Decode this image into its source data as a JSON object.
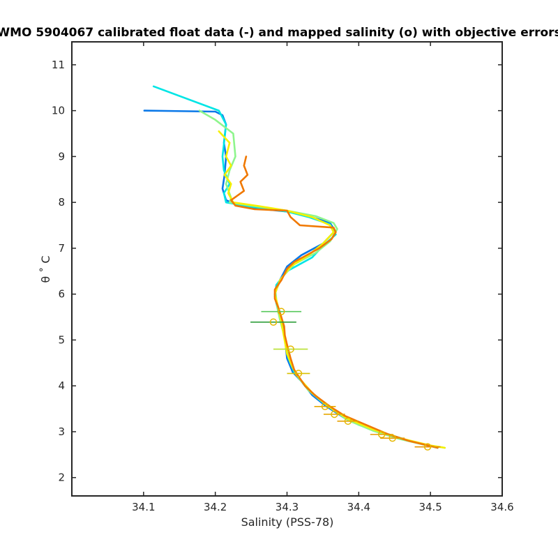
{
  "chart_data": {
    "type": "line",
    "title": "WMO 5904067 calibrated float data (-) and mapped salinity (o) with objective errors",
    "xlabel": "Salinity (PSS-78)",
    "ylabel": "θ ˚ C",
    "xlim": [
      34.0,
      34.6
    ],
    "ylim": [
      1.6,
      11.5
    ],
    "x_ticks": [
      "34.1",
      "34.2",
      "34.3",
      "34.4",
      "34.5",
      "34.6"
    ],
    "y_ticks": [
      "2",
      "3",
      "4",
      "5",
      "6",
      "7",
      "8",
      "9",
      "10",
      "11"
    ],
    "grid": false,
    "legend": "none",
    "series": [
      {
        "color": "#0a78e8",
        "points": [
          [
            34.101,
            10.0
          ],
          [
            34.2,
            9.98
          ],
          [
            34.21,
            9.9
          ],
          [
            34.215,
            9.7
          ],
          [
            34.212,
            9.3
          ],
          [
            34.215,
            9.0
          ],
          [
            34.213,
            8.6
          ],
          [
            34.21,
            8.3
          ],
          [
            34.215,
            8.05
          ],
          [
            34.23,
            7.95
          ],
          [
            34.25,
            7.88
          ],
          [
            34.3,
            7.8
          ],
          [
            34.33,
            7.7
          ],
          [
            34.36,
            7.55
          ],
          [
            34.367,
            7.38
          ],
          [
            34.35,
            7.1
          ],
          [
            34.32,
            6.85
          ],
          [
            34.3,
            6.6
          ],
          [
            34.29,
            6.3
          ],
          [
            34.283,
            6.0
          ],
          [
            34.287,
            5.7
          ],
          [
            34.291,
            5.5
          ],
          [
            34.295,
            5.2
          ],
          [
            34.298,
            4.9
          ],
          [
            34.3,
            4.6
          ],
          [
            34.308,
            4.3
          ],
          [
            34.32,
            4.1
          ],
          [
            34.335,
            3.8
          ],
          [
            34.355,
            3.55
          ],
          [
            34.38,
            3.3
          ],
          [
            34.41,
            3.1
          ],
          [
            34.44,
            2.95
          ],
          [
            34.47,
            2.8
          ],
          [
            34.51,
            2.65
          ]
        ]
      },
      {
        "color": "#00e5e5",
        "points": [
          [
            34.114,
            10.53
          ],
          [
            34.205,
            10.0
          ],
          [
            34.215,
            9.7
          ],
          [
            34.213,
            9.4
          ],
          [
            34.21,
            9.0
          ],
          [
            34.212,
            8.7
          ],
          [
            34.22,
            8.4
          ],
          [
            34.212,
            8.2
          ],
          [
            34.215,
            8.0
          ],
          [
            34.245,
            7.92
          ],
          [
            34.3,
            7.8
          ],
          [
            34.33,
            7.68
          ],
          [
            34.36,
            7.52
          ],
          [
            34.368,
            7.3
          ],
          [
            34.35,
            7.05
          ],
          [
            34.335,
            6.8
          ],
          [
            34.3,
            6.5
          ],
          [
            34.285,
            6.2
          ],
          [
            34.283,
            5.95
          ],
          [
            34.288,
            5.6
          ],
          [
            34.293,
            5.3
          ],
          [
            34.297,
            5.0
          ],
          [
            34.302,
            4.6
          ],
          [
            34.31,
            4.3
          ],
          [
            34.325,
            4.0
          ],
          [
            34.345,
            3.7
          ],
          [
            34.37,
            3.42
          ],
          [
            34.4,
            3.15
          ],
          [
            34.44,
            2.95
          ],
          [
            34.475,
            2.78
          ],
          [
            34.51,
            2.65
          ]
        ]
      },
      {
        "color": "#8ef58c",
        "points": [
          [
            34.178,
            10.0
          ],
          [
            34.2,
            9.8
          ],
          [
            34.225,
            9.5
          ],
          [
            34.228,
            9.0
          ],
          [
            34.22,
            8.7
          ],
          [
            34.215,
            8.4
          ],
          [
            34.222,
            8.1
          ],
          [
            34.22,
            8.0
          ],
          [
            34.25,
            7.93
          ],
          [
            34.3,
            7.82
          ],
          [
            34.34,
            7.7
          ],
          [
            34.365,
            7.55
          ],
          [
            34.37,
            7.42
          ],
          [
            34.36,
            7.15
          ],
          [
            34.34,
            6.9
          ],
          [
            34.31,
            6.65
          ],
          [
            34.292,
            6.35
          ],
          [
            34.284,
            6.05
          ],
          [
            34.286,
            5.75
          ],
          [
            34.29,
            5.45
          ],
          [
            34.296,
            5.1
          ],
          [
            34.3,
            4.8
          ],
          [
            34.305,
            4.5
          ],
          [
            34.315,
            4.2
          ],
          [
            34.33,
            3.9
          ],
          [
            34.355,
            3.58
          ],
          [
            34.385,
            3.25
          ],
          [
            34.42,
            3.02
          ],
          [
            34.455,
            2.85
          ],
          [
            34.49,
            2.72
          ],
          [
            34.52,
            2.65
          ]
        ]
      },
      {
        "color": "#f5f000",
        "points": [
          [
            34.205,
            9.55
          ],
          [
            34.22,
            9.3
          ],
          [
            34.215,
            9.0
          ],
          [
            34.222,
            8.8
          ],
          [
            34.213,
            8.6
          ],
          [
            34.222,
            8.4
          ],
          [
            34.218,
            8.2
          ],
          [
            34.225,
            8.0
          ],
          [
            34.26,
            7.92
          ],
          [
            34.3,
            7.82
          ],
          [
            34.335,
            7.68
          ],
          [
            34.36,
            7.5
          ],
          [
            34.365,
            7.35
          ],
          [
            34.35,
            7.1
          ],
          [
            34.33,
            6.85
          ],
          [
            34.305,
            6.6
          ],
          [
            34.29,
            6.3
          ],
          [
            34.283,
            6.0
          ],
          [
            34.288,
            5.7
          ],
          [
            34.292,
            5.4
          ],
          [
            34.296,
            5.05
          ],
          [
            34.3,
            4.7
          ],
          [
            34.308,
            4.4
          ],
          [
            34.318,
            4.15
          ],
          [
            34.335,
            3.85
          ],
          [
            34.358,
            3.55
          ],
          [
            34.385,
            3.28
          ],
          [
            34.42,
            3.05
          ],
          [
            34.46,
            2.85
          ],
          [
            34.5,
            2.7
          ],
          [
            34.52,
            2.65
          ]
        ]
      },
      {
        "color": "#f07800",
        "points": [
          [
            34.243,
            9.0
          ],
          [
            34.24,
            8.8
          ],
          [
            34.245,
            8.6
          ],
          [
            34.235,
            8.45
          ],
          [
            34.24,
            8.25
          ],
          [
            34.222,
            8.05
          ],
          [
            34.228,
            7.93
          ],
          [
            34.255,
            7.85
          ],
          [
            34.3,
            7.82
          ],
          [
            34.305,
            7.68
          ],
          [
            34.318,
            7.5
          ],
          [
            34.365,
            7.45
          ],
          [
            34.368,
            7.35
          ],
          [
            34.362,
            7.2
          ],
          [
            34.345,
            7.0
          ],
          [
            34.31,
            6.7
          ],
          [
            34.3,
            6.55
          ],
          [
            34.292,
            6.3
          ],
          [
            34.283,
            6.1
          ],
          [
            34.283,
            5.9
          ],
          [
            34.288,
            5.7
          ],
          [
            34.292,
            5.5
          ],
          [
            34.296,
            5.3
          ],
          [
            34.297,
            5.1
          ],
          [
            34.3,
            4.9
          ],
          [
            34.305,
            4.6
          ],
          [
            34.31,
            4.35
          ],
          [
            34.325,
            4.0
          ],
          [
            34.34,
            3.78
          ],
          [
            34.36,
            3.55
          ],
          [
            34.38,
            3.35
          ],
          [
            34.41,
            3.15
          ],
          [
            34.44,
            2.95
          ],
          [
            34.47,
            2.8
          ],
          [
            34.51,
            2.65
          ]
        ]
      }
    ],
    "mapped_salinity": {
      "marker_color": "#e5b800",
      "points": [
        {
          "x": 34.292,
          "y": 5.62,
          "err": 0.028,
          "color": "#55c85a"
        },
        {
          "x": 34.281,
          "y": 5.39,
          "err": 0.032,
          "color": "#2f9e3a"
        },
        {
          "x": 34.305,
          "y": 4.8,
          "err": 0.024,
          "color": "#b8e030"
        },
        {
          "x": 34.316,
          "y": 4.27,
          "err": 0.016,
          "color": "#d8c000"
        },
        {
          "x": 34.353,
          "y": 3.55,
          "err": 0.015,
          "color": "#e6a800"
        },
        {
          "x": 34.366,
          "y": 3.38,
          "err": 0.015,
          "color": "#e6a800"
        },
        {
          "x": 34.385,
          "y": 3.23,
          "err": 0.015,
          "color": "#e6a000"
        },
        {
          "x": 34.432,
          "y": 2.94,
          "err": 0.016,
          "color": "#e69a00"
        },
        {
          "x": 34.447,
          "y": 2.86,
          "err": 0.017,
          "color": "#e69a00"
        },
        {
          "x": 34.496,
          "y": 2.67,
          "err": 0.018,
          "color": "#e69400"
        }
      ]
    }
  }
}
